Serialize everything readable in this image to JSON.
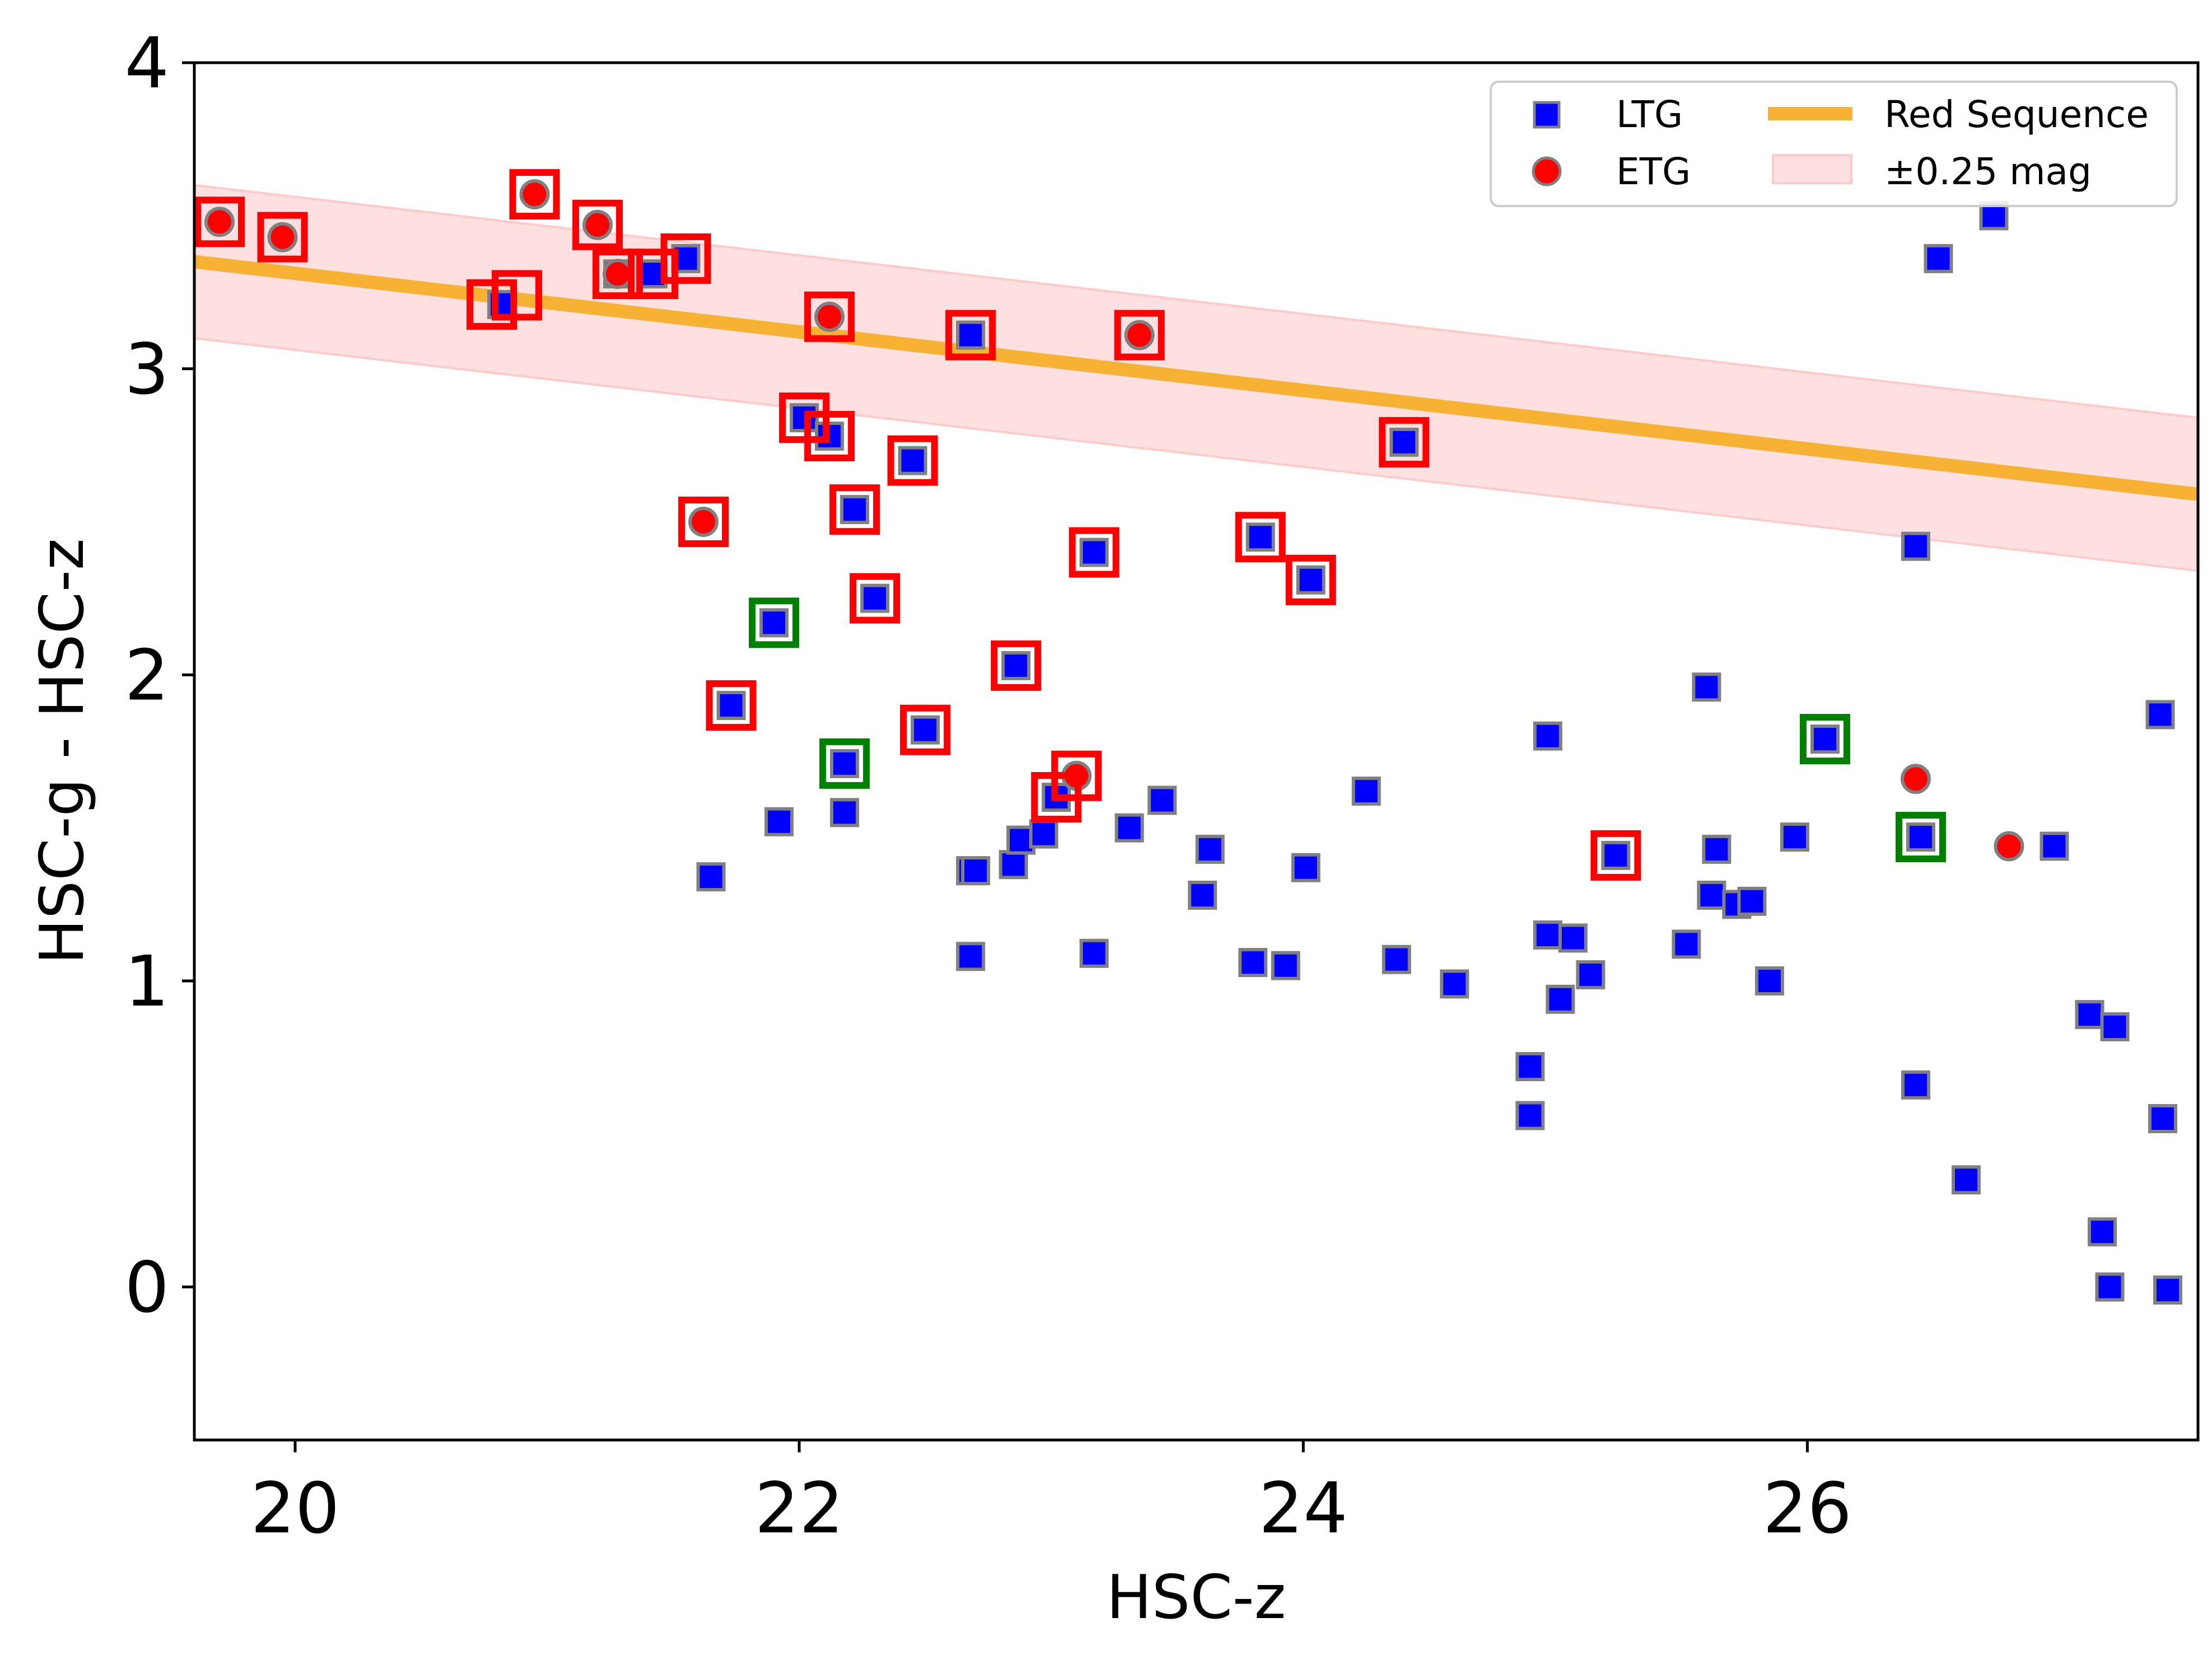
{
  "chart_data": {
    "type": "scatter",
    "title": "",
    "xlabel": "HSC-z",
    "ylabel": "HSC-g - HSC-z",
    "xlim": [
      19.6,
      27.55
    ],
    "ylim": [
      -0.5,
      4.0
    ],
    "xticks": [
      "20",
      "22",
      "24",
      "26"
    ],
    "yticks": [
      "0",
      "1",
      "2",
      "3",
      "4"
    ],
    "grid": false,
    "legend_position": "top-right",
    "legend": [
      {
        "label": "LTG",
        "kind": "square-marker"
      },
      {
        "label": "ETG",
        "kind": "circle-marker"
      },
      {
        "label": "Red Sequence",
        "kind": "line"
      },
      {
        "label": "±0.25 mag",
        "kind": "band"
      }
    ],
    "colors": {
      "ltg": "#0000ff",
      "etg": "#ff0000",
      "marker_edge": "#808080",
      "red_sequence": "#f7b233",
      "band_fill": "#ffe0e0",
      "band_edge": "#ffcaca",
      "highlight_red": "#ff0000",
      "highlight_green": "#008000"
    },
    "red_sequence": {
      "x": [
        19.6,
        27.55
      ],
      "y": [
        3.35,
        2.59
      ],
      "band_halfwidth": 0.25
    },
    "series": [
      {
        "name": "LTG",
        "points": [
          {
            "x": 20.82,
            "y": 3.21
          },
          {
            "x": 21.28,
            "y": 3.31
          },
          {
            "x": 21.42,
            "y": 3.31
          },
          {
            "x": 21.55,
            "y": 3.36
          },
          {
            "x": 22.02,
            "y": 2.84
          },
          {
            "x": 22.12,
            "y": 2.78
          },
          {
            "x": 22.22,
            "y": 2.54
          },
          {
            "x": 22.3,
            "y": 2.25
          },
          {
            "x": 22.45,
            "y": 2.7
          },
          {
            "x": 22.68,
            "y": 3.11
          },
          {
            "x": 23.17,
            "y": 2.4
          },
          {
            "x": 23.83,
            "y": 2.45
          },
          {
            "x": 24.03,
            "y": 2.31
          },
          {
            "x": 24.4,
            "y": 2.76
          },
          {
            "x": 21.9,
            "y": 2.17
          },
          {
            "x": 21.73,
            "y": 1.9
          },
          {
            "x": 22.18,
            "y": 1.71
          },
          {
            "x": 22.86,
            "y": 2.03
          },
          {
            "x": 22.5,
            "y": 1.82
          },
          {
            "x": 23.02,
            "y": 1.6
          },
          {
            "x": 21.65,
            "y": 1.34
          },
          {
            "x": 21.92,
            "y": 1.52
          },
          {
            "x": 22.18,
            "y": 1.55
          },
          {
            "x": 22.68,
            "y": 1.36
          },
          {
            "x": 22.7,
            "y": 1.36
          },
          {
            "x": 22.85,
            "y": 1.38
          },
          {
            "x": 22.88,
            "y": 1.46
          },
          {
            "x": 22.97,
            "y": 1.48
          },
          {
            "x": 22.68,
            "y": 1.08
          },
          {
            "x": 23.17,
            "y": 1.09
          },
          {
            "x": 23.31,
            "y": 1.5
          },
          {
            "x": 23.44,
            "y": 1.59
          },
          {
            "x": 23.6,
            "y": 1.28
          },
          {
            "x": 23.63,
            "y": 1.43
          },
          {
            "x": 23.8,
            "y": 1.06
          },
          {
            "x": 23.93,
            "y": 1.05
          },
          {
            "x": 24.01,
            "y": 1.37
          },
          {
            "x": 24.25,
            "y": 1.62
          },
          {
            "x": 24.37,
            "y": 1.07
          },
          {
            "x": 24.6,
            "y": 0.99
          },
          {
            "x": 24.9,
            "y": 0.72
          },
          {
            "x": 24.9,
            "y": 0.56
          },
          {
            "x": 24.97,
            "y": 1.15
          },
          {
            "x": 24.97,
            "y": 1.8
          },
          {
            "x": 25.02,
            "y": 0.94
          },
          {
            "x": 25.07,
            "y": 1.14
          },
          {
            "x": 25.14,
            "y": 1.02
          },
          {
            "x": 25.24,
            "y": 1.41
          },
          {
            "x": 25.52,
            "y": 1.12
          },
          {
            "x": 25.6,
            "y": 1.96
          },
          {
            "x": 25.62,
            "y": 1.28
          },
          {
            "x": 25.64,
            "y": 1.43
          },
          {
            "x": 25.72,
            "y": 1.25
          },
          {
            "x": 25.78,
            "y": 1.26
          },
          {
            "x": 25.85,
            "y": 1.0
          },
          {
            "x": 25.95,
            "y": 1.47
          },
          {
            "x": 26.07,
            "y": 1.79
          },
          {
            "x": 26.43,
            "y": 2.42
          },
          {
            "x": 26.43,
            "y": 0.66
          },
          {
            "x": 26.45,
            "y": 1.47
          },
          {
            "x": 26.52,
            "y": 3.36
          },
          {
            "x": 26.63,
            "y": 0.35
          },
          {
            "x": 26.74,
            "y": 3.5
          },
          {
            "x": 26.98,
            "y": 1.44
          },
          {
            "x": 27.12,
            "y": 0.89
          },
          {
            "x": 27.17,
            "y": 0.18
          },
          {
            "x": 27.2,
            "y": 0.0
          },
          {
            "x": 27.22,
            "y": 0.85
          },
          {
            "x": 27.4,
            "y": 1.87
          },
          {
            "x": 27.41,
            "y": 0.55
          },
          {
            "x": 27.43,
            "y": -0.01
          }
        ]
      },
      {
        "name": "ETG",
        "points": [
          {
            "x": 19.7,
            "y": 3.48
          },
          {
            "x": 19.95,
            "y": 3.43
          },
          {
            "x": 20.95,
            "y": 3.57
          },
          {
            "x": 21.2,
            "y": 3.47
          },
          {
            "x": 21.28,
            "y": 3.31
          },
          {
            "x": 22.12,
            "y": 3.17
          },
          {
            "x": 21.62,
            "y": 2.5
          },
          {
            "x": 23.35,
            "y": 3.11
          },
          {
            "x": 23.1,
            "y": 1.67
          },
          {
            "x": 26.43,
            "y": 1.66
          },
          {
            "x": 26.8,
            "y": 1.44
          }
        ]
      }
    ],
    "highlight_boxes": [
      {
        "x": 19.7,
        "y": 3.48,
        "color": "red"
      },
      {
        "x": 19.95,
        "y": 3.43,
        "color": "red"
      },
      {
        "x": 20.95,
        "y": 3.57,
        "color": "red"
      },
      {
        "x": 21.2,
        "y": 3.47,
        "color": "red"
      },
      {
        "x": 20.78,
        "y": 3.21,
        "color": "red"
      },
      {
        "x": 20.88,
        "y": 3.24,
        "color": "red"
      },
      {
        "x": 21.28,
        "y": 3.31,
        "color": "red"
      },
      {
        "x": 21.42,
        "y": 3.31,
        "color": "red"
      },
      {
        "x": 21.55,
        "y": 3.36,
        "color": "red"
      },
      {
        "x": 22.12,
        "y": 3.17,
        "color": "red"
      },
      {
        "x": 22.02,
        "y": 2.84,
        "color": "red"
      },
      {
        "x": 22.12,
        "y": 2.78,
        "color": "red"
      },
      {
        "x": 22.22,
        "y": 2.54,
        "color": "red"
      },
      {
        "x": 22.3,
        "y": 2.25,
        "color": "red"
      },
      {
        "x": 22.45,
        "y": 2.7,
        "color": "red"
      },
      {
        "x": 22.68,
        "y": 3.11,
        "color": "red"
      },
      {
        "x": 23.35,
        "y": 3.11,
        "color": "red"
      },
      {
        "x": 21.62,
        "y": 2.5,
        "color": "red"
      },
      {
        "x": 21.73,
        "y": 1.9,
        "color": "red"
      },
      {
        "x": 22.5,
        "y": 1.82,
        "color": "red"
      },
      {
        "x": 22.86,
        "y": 2.03,
        "color": "red"
      },
      {
        "x": 23.02,
        "y": 1.6,
        "color": "red"
      },
      {
        "x": 23.1,
        "y": 1.67,
        "color": "red"
      },
      {
        "x": 23.17,
        "y": 2.4,
        "color": "red"
      },
      {
        "x": 23.83,
        "y": 2.45,
        "color": "red"
      },
      {
        "x": 24.03,
        "y": 2.31,
        "color": "red"
      },
      {
        "x": 24.4,
        "y": 2.76,
        "color": "red"
      },
      {
        "x": 25.24,
        "y": 1.41,
        "color": "red"
      },
      {
        "x": 21.9,
        "y": 2.17,
        "color": "green"
      },
      {
        "x": 22.18,
        "y": 1.71,
        "color": "green"
      },
      {
        "x": 26.07,
        "y": 1.79,
        "color": "green"
      },
      {
        "x": 26.45,
        "y": 1.47,
        "color": "green"
      }
    ]
  }
}
